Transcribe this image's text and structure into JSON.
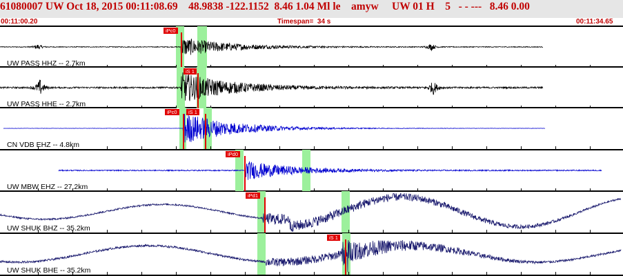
{
  "header": {
    "title": "61080007 UW Oct 18, 2015 00:11:08.69    48.9838 -122.1152  8.46 1.04 Ml le    amyw     UW 01 H    5   - - ---   8.46 0.00",
    "start_time": "00:11:00.20",
    "timespan": "Timespan=  34 s",
    "end_time": "00:11:34.65"
  },
  "colors": {
    "header_text": "#c00000",
    "black_trace": "#000000",
    "blue_trace": "#0000d0",
    "navy_trace": "#1a1a6e",
    "pick": "#e00000",
    "window": "#9cf09c"
  },
  "channels": [
    {
      "label": "UW PASS HHZ -- 2.7km",
      "picks": [
        "iPc0"
      ]
    },
    {
      "label": "UW PASS HHE -- 2.7km",
      "picks": [
        "iS 1"
      ]
    },
    {
      "label": "CN VDB EHZ -- 4.8km",
      "picks": [
        "iPc0",
        "iS 1"
      ]
    },
    {
      "label": "UW MBW EHZ -- 27.2km",
      "picks": [
        "iPd0"
      ]
    },
    {
      "label": "UW SHUK BHZ -- 35.2km",
      "picks": [
        "iPd1"
      ]
    },
    {
      "label": "UW SHUK BHE -- 35.2km",
      "picks": [
        "iS 1"
      ]
    }
  ]
}
